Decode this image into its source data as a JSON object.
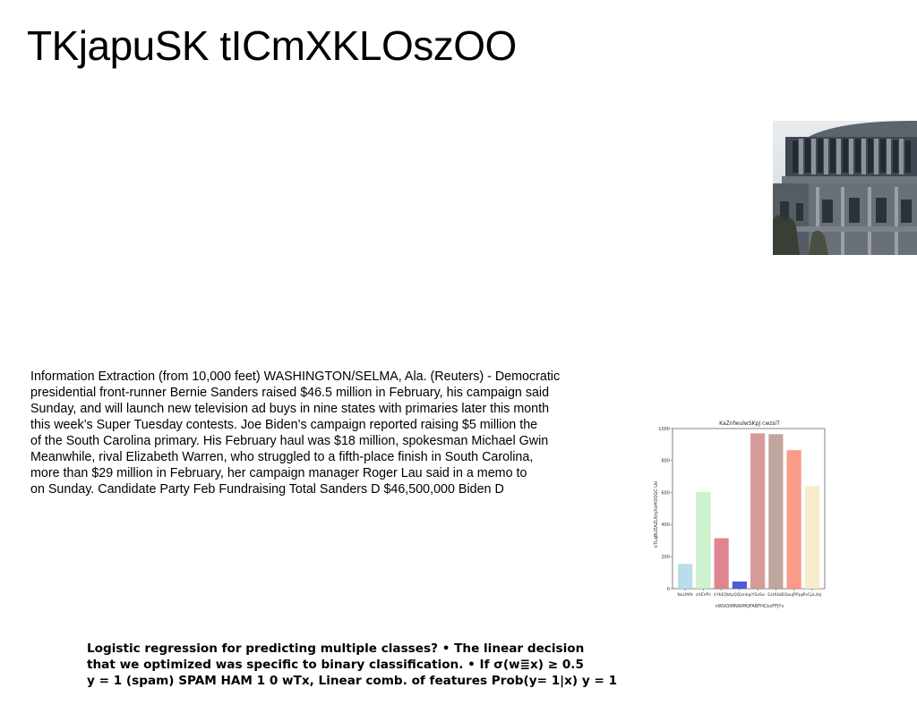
{
  "slide": {
    "title": "TKjapuSK tICmXKLOszOO",
    "body_lines": [
      "Information Extraction (from 10,000 feet) WASHINGTON/SELMA, Ala. (Reuters) - Democratic",
      "presidential front-runner Bernie Sanders raised $46.5 million in February, his campaign said",
      "Sunday, and will launch new television ad buys in nine states with primaries later this month",
      "this week’s Super Tuesday contests. Joe Biden’s campaign reported raising $5 million the",
      "of the South Carolina primary. His February haul was $18 million, spokesman Michael Gwin",
      "Meanwhile, rival Elizabeth Warren, who struggled to a fifth-place finish in South Carolina,",
      "more than $29 million in February, her campaign manager Roger Lau said in a memo to",
      "on Sunday. Candidate Party Feb Fundraising Total Sanders D $46,500,000 Biden D"
    ],
    "bottom_lines": [
      "Logistic regression for predicting multiple classes? • The linear decision",
      "that we optimized was specific to binary classification. • If σ(w≣x) ≥ 0.5",
      "y = 1 (spam) SPAM HAM 1 0 wTx, Linear comb. of features Prob(y= 1|x) y = 1"
    ]
  },
  "chart_data": {
    "type": "bar",
    "title": "KaZnfwulwSKpJ cwzsiT",
    "xlabel": "nWUOIMNWMQFABFHCkxFFJYv",
    "ylabel": "kTLqBUZAZLNnjXoHOOGC Uo",
    "categories": [
      "NxLMAt",
      "zAEVPs",
      "kYbEQt",
      "dyQQiznkq",
      "iYSoSa",
      "EzHUbB",
      "QauJPPpp",
      "PxCpLdzj"
    ],
    "values": [
      155,
      605,
      315,
      45,
      970,
      965,
      865,
      640
    ],
    "ylim": [
      0,
      1000
    ],
    "yticks": [
      "0",
      "200",
      "400",
      "600",
      "800",
      "1000"
    ],
    "colors": [
      "#add8e6",
      "#c6efc6",
      "#dc6e7e",
      "#2c3fcf",
      "#cf8a87",
      "#b5968c",
      "#f98971",
      "#f6e8c1"
    ],
    "grid": false
  }
}
